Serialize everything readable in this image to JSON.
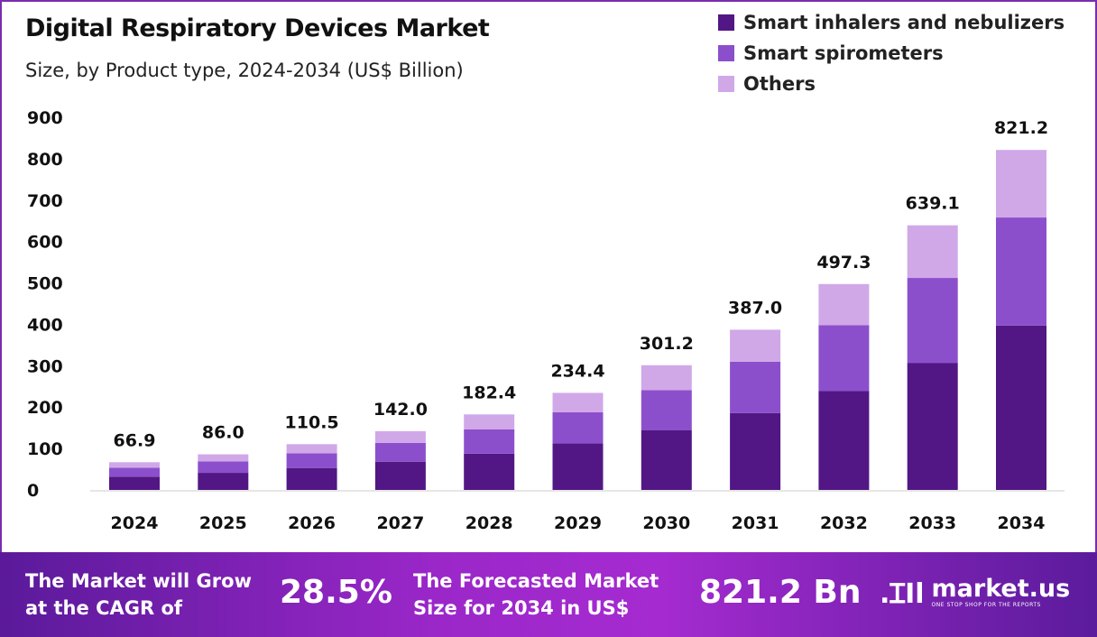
{
  "chart_data": {
    "type": "bar",
    "stacked": true,
    "title": "Digital Respiratory Devices Market",
    "subtitle": "Size, by Product type, 2024-2034 (US$ Billion)",
    "xlabel": "",
    "ylabel": "",
    "ylim": [
      0,
      900
    ],
    "yticks": [
      "0",
      "100",
      "200",
      "300",
      "400",
      "500",
      "600",
      "700",
      "800",
      "900"
    ],
    "grid": false,
    "legend_position": "top-right",
    "categories": [
      "2024",
      "2025",
      "2026",
      "2027",
      "2028",
      "2029",
      "2030",
      "2031",
      "2032",
      "2033",
      "2034"
    ],
    "totals": [
      "66.9",
      "86.0",
      "110.5",
      "142.0",
      "182.4",
      "234.4",
      "301.2",
      "387.0",
      "497.3",
      "639.1",
      "821.2"
    ],
    "series": [
      {
        "name": "Smart inhalers and nebulizers",
        "color": "#521785",
        "values": [
          32.1,
          41.3,
          53.0,
          68.2,
          87.6,
          112.5,
          144.6,
          185.8,
          238.7,
          307.0,
          397.0
        ]
      },
      {
        "name": "Smart spirometers",
        "color": "#8c4fcc",
        "values": [
          21.4,
          27.5,
          35.4,
          45.4,
          58.4,
          75.0,
          96.4,
          123.8,
          159.1,
          205.0,
          261.0
        ]
      },
      {
        "name": "Others",
        "color": "#d0a8e8",
        "values": [
          13.4,
          17.2,
          22.1,
          28.4,
          36.4,
          46.9,
          60.2,
          77.4,
          99.5,
          127.1,
          163.2
        ]
      }
    ]
  },
  "banner": {
    "cagr_label_1": "The Market will Grow",
    "cagr_label_2": "at the CAGR of",
    "cagr_value": "28.5%",
    "forecast_label_1": "The Forecasted Market",
    "forecast_label_2": "Size for 2034 in US$",
    "forecast_value": "821.2 Bn",
    "logo_name": "market.us",
    "logo_tagline": "ONE STOP SHOP FOR THE REPORTS"
  }
}
